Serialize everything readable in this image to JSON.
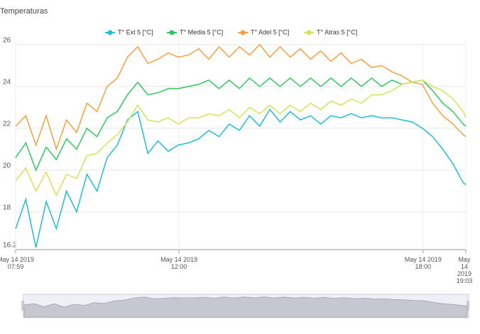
{
  "chart_data": {
    "type": "line",
    "title": "Temperaturas",
    "x": [
      "2019-05-14 07:59",
      "2019-05-14 08:14",
      "2019-05-14 08:29",
      "2019-05-14 08:44",
      "2019-05-14 08:59",
      "2019-05-14 09:14",
      "2019-05-14 09:29",
      "2019-05-14 09:44",
      "2019-05-14 09:59",
      "2019-05-14 10:14",
      "2019-05-14 10:29",
      "2019-05-14 10:44",
      "2019-05-14 10:59",
      "2019-05-14 11:14",
      "2019-05-14 11:29",
      "2019-05-14 11:44",
      "2019-05-14 11:59",
      "2019-05-14 12:14",
      "2019-05-14 12:29",
      "2019-05-14 12:44",
      "2019-05-14 12:59",
      "2019-05-14 13:14",
      "2019-05-14 13:29",
      "2019-05-14 13:44",
      "2019-05-14 13:59",
      "2019-05-14 14:14",
      "2019-05-14 14:29",
      "2019-05-14 14:44",
      "2019-05-14 14:59",
      "2019-05-14 15:14",
      "2019-05-14 15:29",
      "2019-05-14 15:44",
      "2019-05-14 15:59",
      "2019-05-14 16:14",
      "2019-05-14 16:29",
      "2019-05-14 16:44",
      "2019-05-14 16:59",
      "2019-05-14 17:14",
      "2019-05-14 17:29",
      "2019-05-14 17:44",
      "2019-05-14 17:59",
      "2019-05-14 18:14",
      "2019-05-14 18:29",
      "2019-05-14 18:44",
      "2019-05-14 18:59",
      "2019-05-14 19:03"
    ],
    "series": [
      {
        "name": "T° Ext 5 [°C]",
        "color": "#22bcd4",
        "values": [
          17.2,
          18.6,
          16.3,
          18.5,
          17.2,
          19.0,
          18.0,
          19.8,
          19.0,
          20.6,
          21.2,
          22.4,
          22.8,
          20.8,
          21.4,
          20.9,
          21.2,
          21.3,
          21.5,
          21.9,
          21.6,
          22.2,
          21.9,
          22.6,
          22.1,
          22.9,
          22.3,
          22.8,
          22.4,
          22.6,
          22.2,
          22.6,
          22.5,
          22.7,
          22.5,
          22.6,
          22.5,
          22.5,
          22.4,
          22.3,
          22.0,
          21.6,
          21.0,
          20.3,
          19.4,
          19.3
        ]
      },
      {
        "name": "T° Media 5 [°C]",
        "color": "#2fc85e",
        "values": [
          20.6,
          21.3,
          20.0,
          21.1,
          20.5,
          21.5,
          21.0,
          22.0,
          21.6,
          22.5,
          22.8,
          23.6,
          24.2,
          23.6,
          23.7,
          23.9,
          23.9,
          24.0,
          24.1,
          24.3,
          23.9,
          24.3,
          23.9,
          24.4,
          24.0,
          24.4,
          24.0,
          24.4,
          24.0,
          24.4,
          24.0,
          24.4,
          24.0,
          24.4,
          24.0,
          24.4,
          24.0,
          24.3,
          24.1,
          24.2,
          24.3,
          23.8,
          23.2,
          22.8,
          22.2,
          22.1
        ]
      },
      {
        "name": "T° Adel 5 [°C]",
        "color": "#f5a040",
        "values": [
          22.1,
          22.6,
          21.2,
          22.6,
          21.0,
          22.4,
          21.8,
          23.2,
          22.8,
          24.0,
          24.4,
          25.4,
          25.9,
          25.1,
          25.3,
          25.6,
          25.4,
          25.5,
          25.8,
          25.3,
          25.9,
          25.4,
          25.9,
          25.5,
          26.0,
          25.4,
          25.9,
          25.4,
          25.8,
          25.3,
          25.7,
          25.2,
          25.6,
          25.1,
          25.3,
          24.9,
          25.0,
          24.7,
          24.5,
          24.2,
          24.1,
          23.2,
          22.6,
          22.2,
          21.7,
          21.6
        ]
      },
      {
        "name": "T° Atras 5 [°C]",
        "color": "#d3e35a",
        "values": [
          19.5,
          20.1,
          19.0,
          19.9,
          18.8,
          19.8,
          19.6,
          20.7,
          20.8,
          21.3,
          21.7,
          22.3,
          23.1,
          22.4,
          22.3,
          22.5,
          22.2,
          22.5,
          22.5,
          22.7,
          22.6,
          22.9,
          22.5,
          23.0,
          22.7,
          23.1,
          22.7,
          23.1,
          22.8,
          23.2,
          22.9,
          23.3,
          23.1,
          23.4,
          23.2,
          23.6,
          23.6,
          23.8,
          24.1,
          24.2,
          24.3,
          24.0,
          23.8,
          23.4,
          22.8,
          22.5
        ]
      }
    ],
    "xlim": [
      "2019-05-14 07:59",
      "2019-05-14 19:03"
    ],
    "xticks": [
      {
        "value": "2019-05-14 07:59",
        "label": "May 14 2019\n07:59"
      },
      {
        "value": "2019-05-14 12:00",
        "label": "May 14 2019\n12:00"
      },
      {
        "value": "2019-05-14 18:00",
        "label": "May 14 2019\n18:00"
      },
      {
        "value": "2019-05-14 19:03",
        "label": "May 14 2019\n19:03"
      }
    ],
    "ylim": [
      16.2,
      26.2
    ],
    "yticks": [
      16.2,
      18,
      20,
      22,
      24,
      26
    ],
    "grid": true
  }
}
